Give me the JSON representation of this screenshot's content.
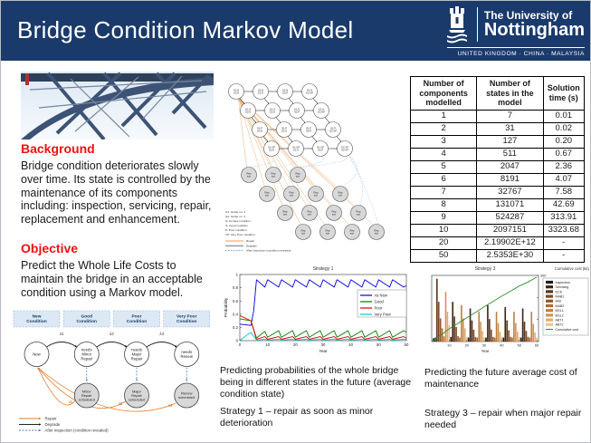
{
  "header": {
    "title": "Bridge Condition Markov Model",
    "logo": {
      "name_line1": "The University of",
      "name_line2": "Nottingham",
      "tagline": "UNITED KINGDOM · CHINA · MALAYSIA"
    }
  },
  "background": {
    "heading": "Background",
    "body": "Bridge condition deteriorates slowly over time.  Its state is controlled by the maintenance of its components including: inspection, servicing, repair, replacement and enhancement."
  },
  "objective": {
    "heading": "Objective",
    "body": "Predict the Whole Life Costs to maintain the bridge in an acceptable condition using a Markov model."
  },
  "captions": {
    "caption_prob": "Predicting probabilities of the whole bridge being in different states in the future (average condition state)",
    "caption_strategy1": "Strategy 1 – repair as soon as minor deterioration",
    "caption_cost": "Predicting the future average cost of maintenance",
    "caption_strategy3": "Strategy 3 – repair when major repair needed"
  },
  "state_diagram": {
    "columns": [
      "New Condition",
      "Good Condition",
      "Poor Condition",
      "Very Poor Condition"
    ],
    "states": [
      "New",
      "needs Minor Repair",
      "needs Major Repair",
      "needs Renew"
    ],
    "scheduled": [
      "Minor Repair scheduled",
      "Major Repair scheduled",
      "Renew scheduled"
    ],
    "degrade_labels": [
      "λ1",
      "λ2",
      "λ3"
    ],
    "repair_labels": [
      "v1",
      "v2",
      "v3"
    ],
    "legend": [
      {
        "label": "Repair",
        "style": "orange"
      },
      {
        "label": "Degrade",
        "style": "black"
      },
      {
        "label": "After inspection (condition revealed)",
        "style": "blue-dashed"
      }
    ]
  },
  "lattice": {
    "component_states": [
      "N",
      "G",
      "P",
      "VP"
    ],
    "gray_label": [
      "Rep",
      "sch"
    ],
    "legend_terms": [
      "G1:  Girder no. 1",
      "G2:  Girder no. 2",
      "N:  As New condition",
      "G:  Good condition",
      "P:  Poor condition",
      "VP:  Very Poor condition"
    ],
    "legend_arrows": [
      {
        "label": "Repair",
        "style": "orange"
      },
      {
        "label": "Degrade",
        "style": "black"
      },
      {
        "label": "After inspection (condition revealed)",
        "style": "blue-dashed"
      }
    ]
  },
  "table": {
    "headers": [
      "Number of components modelled",
      "Number of states in the model",
      "Solution time (s)"
    ],
    "rows": [
      [
        "1",
        "7",
        "0.01"
      ],
      [
        "2",
        "31",
        "0.02"
      ],
      [
        "3",
        "127",
        "0.20"
      ],
      [
        "4",
        "511",
        "0.67"
      ],
      [
        "5",
        "2047",
        "2.36"
      ],
      [
        "6",
        "8191",
        "4.07"
      ],
      [
        "7",
        "32767",
        "7.58"
      ],
      [
        "8",
        "131071",
        "42.69"
      ],
      [
        "9",
        "524287",
        "313.91"
      ],
      [
        "10",
        "2097151",
        "3323.68"
      ],
      [
        "20",
        "2.19902E+12",
        "-"
      ],
      [
        "50",
        "2.5353E+30",
        "-"
      ]
    ]
  },
  "chart_data": [
    {
      "type": "line",
      "title": "Strategy 1",
      "xlabel": "Year",
      "ylabel": "Probability",
      "xlim": [
        0,
        60
      ],
      "ylim": [
        0,
        1
      ],
      "xticks": [
        0,
        10,
        20,
        30,
        40,
        50,
        60
      ],
      "yticks": [
        0,
        0.2,
        0.4,
        0.6,
        0.8,
        1
      ],
      "legend_position": "right",
      "series": [
        {
          "name": "As New",
          "color": "#0000dd",
          "points": [
            [
              0,
              0.25
            ],
            [
              4,
              0.23
            ],
            [
              5,
              0.45
            ],
            [
              6,
              0.92
            ],
            [
              9,
              0.81
            ],
            [
              10,
              0.92
            ],
            [
              14,
              0.81
            ],
            [
              15,
              0.92
            ],
            [
              19,
              0.81
            ],
            [
              20,
              0.92
            ],
            [
              24,
              0.81
            ],
            [
              25,
              0.92
            ],
            [
              29,
              0.81
            ],
            [
              30,
              0.92
            ],
            [
              34,
              0.81
            ],
            [
              35,
              0.92
            ],
            [
              39,
              0.81
            ],
            [
              40,
              0.92
            ],
            [
              44,
              0.81
            ],
            [
              45,
              0.92
            ],
            [
              49,
              0.81
            ],
            [
              50,
              0.92
            ],
            [
              54,
              0.81
            ],
            [
              55,
              0.92
            ],
            [
              59,
              0.81
            ],
            [
              60,
              0.83
            ]
          ]
        },
        {
          "name": "Good",
          "color": "#007a00",
          "points": [
            [
              0,
              0.33
            ],
            [
              4,
              0.3
            ],
            [
              6,
              0.04
            ],
            [
              9,
              0.14
            ],
            [
              10,
              0.05
            ],
            [
              14,
              0.15
            ],
            [
              15,
              0.05
            ],
            [
              19,
              0.15
            ],
            [
              20,
              0.05
            ],
            [
              24,
              0.15
            ],
            [
              25,
              0.05
            ],
            [
              29,
              0.15
            ],
            [
              30,
              0.05
            ],
            [
              34,
              0.15
            ],
            [
              35,
              0.05
            ],
            [
              39,
              0.15
            ],
            [
              40,
              0.05
            ],
            [
              44,
              0.15
            ],
            [
              45,
              0.05
            ],
            [
              49,
              0.15
            ],
            [
              50,
              0.05
            ],
            [
              54,
              0.15
            ],
            [
              55,
              0.05
            ],
            [
              59,
              0.15
            ],
            [
              60,
              0.13
            ]
          ]
        },
        {
          "name": "Poor",
          "color": "#dd0000",
          "points": [
            [
              0,
              0.38
            ],
            [
              4,
              0.3
            ],
            [
              6,
              0.02
            ],
            [
              9,
              0.06
            ],
            [
              10,
              0.02
            ],
            [
              14,
              0.06
            ],
            [
              15,
              0.02
            ],
            [
              19,
              0.06
            ],
            [
              20,
              0.02
            ],
            [
              24,
              0.06
            ],
            [
              25,
              0.02
            ],
            [
              29,
              0.06
            ],
            [
              30,
              0.02
            ],
            [
              34,
              0.06
            ],
            [
              35,
              0.02
            ],
            [
              39,
              0.06
            ],
            [
              40,
              0.02
            ],
            [
              44,
              0.06
            ],
            [
              45,
              0.02
            ],
            [
              49,
              0.06
            ],
            [
              50,
              0.02
            ],
            [
              54,
              0.06
            ],
            [
              55,
              0.02
            ],
            [
              59,
              0.06
            ],
            [
              60,
              0.04
            ]
          ]
        },
        {
          "name": "Very Poor",
          "color": "#00c8c8",
          "points": [
            [
              0,
              0
            ],
            [
              3,
              0.1
            ],
            [
              4,
              0.12
            ],
            [
              6,
              0.01
            ],
            [
              9,
              0.02
            ],
            [
              10,
              0.01
            ],
            [
              14,
              0.02
            ],
            [
              15,
              0.01
            ],
            [
              19,
              0.02
            ],
            [
              20,
              0.01
            ],
            [
              24,
              0.02
            ],
            [
              25,
              0.01
            ],
            [
              29,
              0.02
            ],
            [
              30,
              0.01
            ],
            [
              34,
              0.02
            ],
            [
              35,
              0.01
            ],
            [
              39,
              0.02
            ],
            [
              40,
              0.01
            ],
            [
              44,
              0.02
            ],
            [
              45,
              0.01
            ],
            [
              49,
              0.02
            ],
            [
              50,
              0.01
            ],
            [
              54,
              0.02
            ],
            [
              55,
              0.01
            ],
            [
              59,
              0.02
            ],
            [
              60,
              0.02
            ]
          ]
        }
      ]
    },
    {
      "type": "bar",
      "title": "Strategy 3",
      "xlabel": "Year",
      "y2label": "Cumulative cost (k£)",
      "xlim": [
        0,
        61
      ],
      "ylim": [
        0,
        100
      ],
      "y2lim": [
        0,
        300
      ],
      "xticks": [
        10,
        20,
        30,
        40,
        50,
        60
      ],
      "y2_top_tick": "300",
      "bar_values": [
        5,
        6,
        95,
        60,
        35,
        20,
        8,
        75,
        45,
        25,
        7,
        60,
        38,
        22,
        8,
        6,
        55,
        35,
        20,
        7,
        6,
        50,
        32,
        18,
        7,
        6,
        45,
        30,
        16,
        7,
        6,
        55,
        34,
        18,
        7,
        6,
        45,
        28,
        15,
        7,
        6,
        52,
        32,
        17,
        7,
        6,
        45,
        28,
        15,
        7,
        6,
        50,
        30,
        16,
        7,
        6,
        45,
        27,
        14,
        6
      ],
      "palette": [
        "#1a1a1a",
        "#3c2415",
        "#5a351c",
        "#7a4722",
        "#925829",
        "#aa6a30",
        "#c27e3b",
        "#d4934f",
        "#e2ab70",
        "#efc596"
      ],
      "components": [
        "Inspection",
        "Servicing",
        "DCK",
        "MAB1",
        "MGI",
        "MAB2",
        "BGL1",
        "BGL2",
        "ABT1",
        "ABT2"
      ],
      "cumulative": {
        "name": "Cumulative cost",
        "color": "#2e8b2e",
        "points": [
          [
            0,
            0
          ],
          [
            5,
            28
          ],
          [
            10,
            58
          ],
          [
            15,
            82
          ],
          [
            20,
            108
          ],
          [
            25,
            132
          ],
          [
            30,
            158
          ],
          [
            35,
            182
          ],
          [
            40,
            206
          ],
          [
            45,
            228
          ],
          [
            50,
            252
          ],
          [
            55,
            270
          ],
          [
            60,
            292
          ]
        ]
      }
    }
  ]
}
